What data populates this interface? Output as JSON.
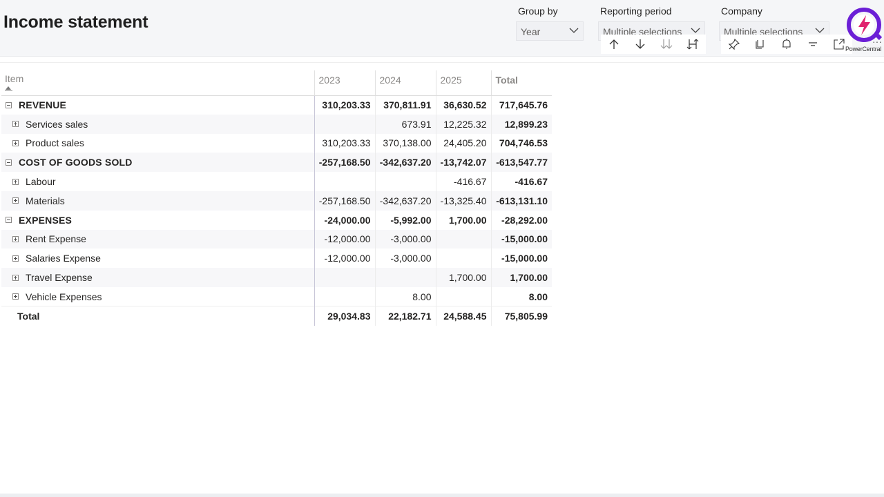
{
  "page": {
    "title": "Income statement"
  },
  "filters": [
    {
      "label": "Group by",
      "value": "Year"
    },
    {
      "label": "Reporting period",
      "value": "Multiple selections"
    },
    {
      "label": "Company",
      "value": "Multiple selections"
    }
  ],
  "toolbar": {
    "buttons": [
      "arrow-up-icon",
      "arrow-down-icon",
      "expand-all-icon",
      "drill-mode-icon",
      "pin-icon",
      "copy-icon",
      "alert-icon",
      "filter-icon",
      "focus-mode-icon",
      "more-options-icon"
    ]
  },
  "brand": {
    "logo_text": "PowerCentral",
    "accent": "#6b1fd6",
    "accent2": "#e0246e"
  },
  "matrix": {
    "columns": [
      "Item",
      "2023",
      "2024",
      "2025",
      "Total"
    ],
    "rows": [
      {
        "level": 0,
        "label": "REVENUE",
        "toggle": "collapse",
        "values": [
          "310,203.33",
          "370,811.91",
          "36,630.52",
          "717,645.76"
        ]
      },
      {
        "level": 1,
        "label": "Services sales",
        "toggle": "expand",
        "values": [
          "",
          "673.91",
          "12,225.32",
          "12,899.23"
        ]
      },
      {
        "level": 1,
        "label": "Product sales",
        "toggle": "expand",
        "values": [
          "310,203.33",
          "370,138.00",
          "24,405.20",
          "704,746.53"
        ]
      },
      {
        "level": 0,
        "label": "COST OF GOODS SOLD",
        "toggle": "collapse",
        "values": [
          "-257,168.50",
          "-342,637.20",
          "-13,742.07",
          "-613,547.77"
        ]
      },
      {
        "level": 1,
        "label": "Labour",
        "toggle": "expand",
        "values": [
          "",
          "",
          "-416.67",
          "-416.67"
        ]
      },
      {
        "level": 1,
        "label": "Materials",
        "toggle": "expand",
        "values": [
          "-257,168.50",
          "-342,637.20",
          "-13,325.40",
          "-613,131.10"
        ]
      },
      {
        "level": 0,
        "label": "EXPENSES",
        "toggle": "collapse",
        "values": [
          "-24,000.00",
          "-5,992.00",
          "1,700.00",
          "-28,292.00"
        ]
      },
      {
        "level": 1,
        "label": "Rent Expense",
        "toggle": "expand",
        "values": [
          "-12,000.00",
          "-3,000.00",
          "",
          "-15,000.00"
        ]
      },
      {
        "level": 1,
        "label": "Salaries Expense",
        "toggle": "expand",
        "values": [
          "-12,000.00",
          "-3,000.00",
          "",
          "-15,000.00"
        ]
      },
      {
        "level": 1,
        "label": "Travel Expense",
        "toggle": "expand",
        "values": [
          "",
          "",
          "1,700.00",
          "1,700.00"
        ]
      },
      {
        "level": 1,
        "label": "Vehicle Expenses",
        "toggle": "expand",
        "values": [
          "",
          "8.00",
          "",
          "8.00"
        ]
      }
    ],
    "total": {
      "label": "Total",
      "values": [
        "29,034.83",
        "22,182.71",
        "24,588.45",
        "75,805.99"
      ]
    }
  }
}
